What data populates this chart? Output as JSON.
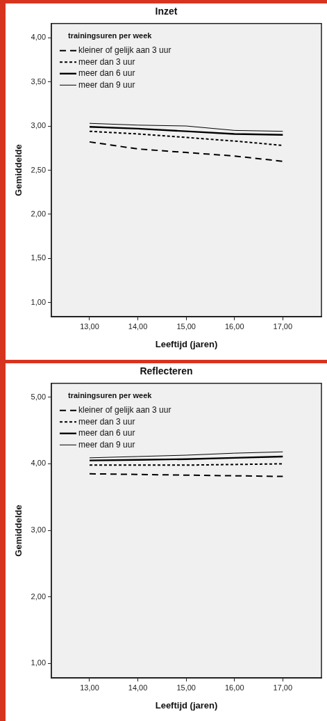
{
  "chart_data": [
    {
      "type": "line",
      "title": "Inzet",
      "xlabel": "Leeftijd (jaren)",
      "ylabel": "Gemiddelde",
      "legend_title": "trainingsuren per week",
      "legend": "top left",
      "grid": false,
      "marker": "none",
      "x": [
        13,
        14,
        15,
        16,
        17
      ],
      "xlim": [
        12.21,
        17.8
      ],
      "xticks": [
        {
          "value": 13,
          "label": "13,00"
        },
        {
          "value": 14,
          "label": "14,00"
        },
        {
          "value": 15,
          "label": "15,00"
        },
        {
          "value": 16,
          "label": "16,00"
        },
        {
          "value": 17,
          "label": "17,00"
        }
      ],
      "ylim": [
        0.84,
        4.16
      ],
      "yticks": [
        {
          "value": 1,
          "label": "1,00"
        },
        {
          "value": 1.5,
          "label": "1,50"
        },
        {
          "value": 2,
          "label": "2,00"
        },
        {
          "value": 2.5,
          "label": "2,50"
        },
        {
          "value": 3,
          "label": "3,00"
        },
        {
          "value": 3.5,
          "label": "3,50"
        },
        {
          "value": 4,
          "label": "4,00"
        }
      ],
      "series": [
        {
          "name": "kleiner of gelijk aan 3 uur",
          "color": "#000000",
          "line_style": "dashed",
          "values": [
            2.82,
            2.74,
            2.7,
            2.66,
            2.6
          ]
        },
        {
          "name": "meer dan 3 uur",
          "color": "#000000",
          "line_style": "dotted",
          "values": [
            2.94,
            2.91,
            2.87,
            2.83,
            2.78
          ]
        },
        {
          "name": "meer dan 6 uur",
          "color": "#000000",
          "line_style": "solid",
          "values": [
            2.99,
            2.97,
            2.94,
            2.91,
            2.9
          ]
        },
        {
          "name": "meer dan 9 uur",
          "color": "#000000",
          "line_style": "solid",
          "values": [
            3.03,
            3.01,
            3.0,
            2.95,
            2.94
          ]
        }
      ]
    },
    {
      "type": "line",
      "title": "Reflecteren",
      "xlabel": "Leeftijd (jaren)",
      "ylabel": "Gemiddelde",
      "legend_title": "trainingsuren per week",
      "legend": "top left",
      "grid": false,
      "marker": "none",
      "x": [
        13,
        14,
        15,
        16,
        17
      ],
      "xlim": [
        12.21,
        17.8
      ],
      "xticks": [
        {
          "value": 13,
          "label": "13,00"
        },
        {
          "value": 14,
          "label": "14,00"
        },
        {
          "value": 15,
          "label": "15,00"
        },
        {
          "value": 16,
          "label": "16,00"
        },
        {
          "value": 17,
          "label": "17,00"
        }
      ],
      "ylim": [
        0.78,
        5.21
      ],
      "yticks": [
        {
          "value": 1,
          "label": "1,00"
        },
        {
          "value": 2,
          "label": "2,00"
        },
        {
          "value": 3,
          "label": "3,00"
        },
        {
          "value": 4,
          "label": "4,00"
        },
        {
          "value": 5,
          "label": "5,00"
        }
      ],
      "series": [
        {
          "name": "kleiner of gelijk aan 3 uur",
          "color": "#000000",
          "line_style": "dashed",
          "values": [
            3.85,
            3.84,
            3.83,
            3.82,
            3.81
          ]
        },
        {
          "name": "meer dan 3 uur",
          "color": "#000000",
          "line_style": "dotted",
          "values": [
            3.98,
            3.98,
            3.98,
            3.99,
            4.0
          ]
        },
        {
          "name": "meer dan 6 uur",
          "color": "#000000",
          "line_style": "solid",
          "values": [
            4.05,
            4.06,
            4.07,
            4.09,
            4.11
          ]
        },
        {
          "name": "meer dan 9 uur",
          "color": "#000000",
          "line_style": "solid",
          "values": [
            4.09,
            4.11,
            4.13,
            4.16,
            4.18
          ]
        }
      ]
    }
  ]
}
